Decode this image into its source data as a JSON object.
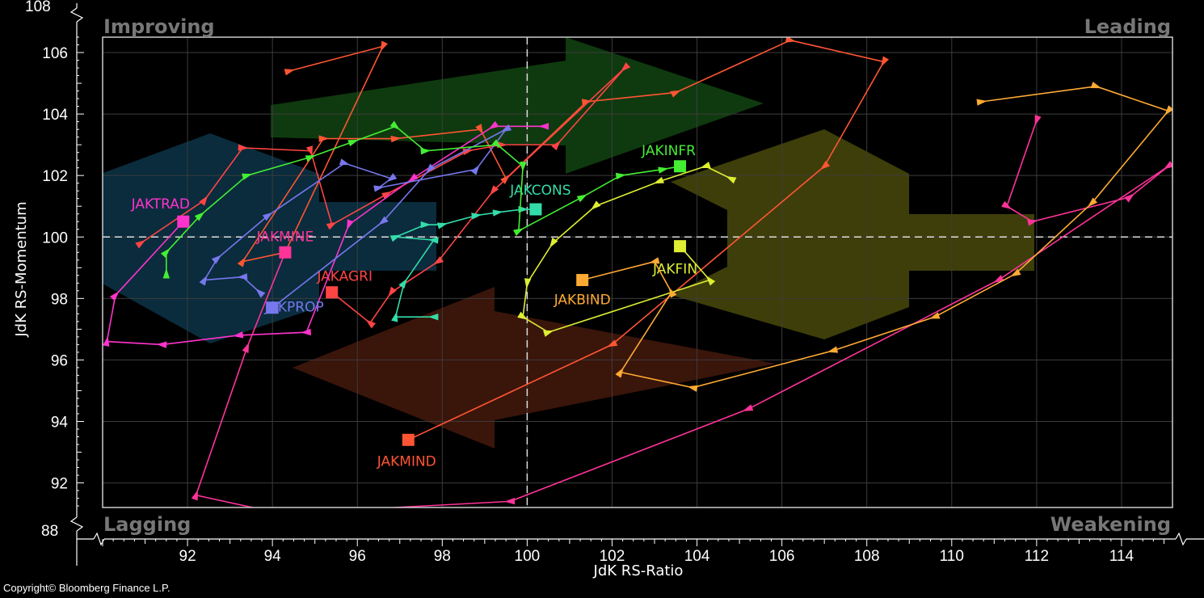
{
  "chart_data": {
    "type": "scatter",
    "subtype": "relative-rotation-graph",
    "xlabel": "JdK RS-Ratio",
    "ylabel": "JdK RS-Momentum",
    "xlim": [
      90,
      115.2
    ],
    "ylim": [
      91.2,
      106.5
    ],
    "x_ticks": [
      92,
      94,
      96,
      98,
      100,
      102,
      104,
      106,
      108,
      110,
      112,
      114
    ],
    "y_ticks": [
      92,
      94,
      96,
      98,
      100,
      102,
      104,
      106
    ],
    "y_break_labels": [
      "108",
      "88"
    ],
    "center": [
      100,
      100
    ],
    "grid": true,
    "quadrants": {
      "top_left": {
        "label": "Improving",
        "color": "#1a6b1a"
      },
      "top_right": {
        "label": "Leading",
        "color": "#5a5a00"
      },
      "bottom_left": {
        "label": "Lagging",
        "color": "#0d3d5a"
      },
      "bottom_right": {
        "label": "Weakening",
        "color": "#5a1e0a"
      }
    },
    "series": [
      {
        "name": "JAKMIND",
        "color": "#ff5533",
        "points": [
          [
            94.4,
            105.4
          ],
          [
            96.6,
            106.2
          ],
          [
            94.3,
            99.5
          ],
          [
            93.3,
            99.2
          ],
          [
            95.2,
            103.2
          ],
          [
            96.9,
            103.2
          ],
          [
            98.9,
            103.5
          ],
          [
            99.5,
            101.9
          ],
          [
            101.4,
            104.4
          ],
          [
            103.5,
            104.7
          ],
          [
            106.2,
            106.4
          ],
          [
            108.4,
            105.7
          ],
          [
            107.0,
            102.3
          ],
          [
            102.0,
            96.5
          ],
          [
            97.2,
            93.4
          ]
        ]
      },
      {
        "name": "JAKAGRI",
        "color": "#ff4444",
        "points": [
          [
            90.9,
            99.8
          ],
          [
            92.4,
            101.2
          ],
          [
            93.3,
            102.9
          ],
          [
            94.9,
            102.8
          ],
          [
            95.4,
            100.4
          ],
          [
            96.7,
            101.4
          ],
          [
            98.6,
            102.8
          ],
          [
            99.4,
            103.0
          ],
          [
            100.7,
            103.0
          ],
          [
            102.3,
            105.5
          ],
          [
            99.2,
            101.5
          ],
          [
            97.9,
            99.2
          ],
          [
            96.8,
            98.2
          ],
          [
            96.3,
            97.2
          ],
          [
            95.4,
            98.2
          ]
        ]
      },
      {
        "name": "JAKTRAD",
        "color": "#ff33cc",
        "points": [
          [
            100.4,
            103.6
          ],
          [
            99.2,
            103.6
          ],
          [
            97.3,
            101.9
          ],
          [
            95.8,
            100.4
          ],
          [
            94.8,
            96.9
          ],
          [
            93.2,
            96.8
          ],
          [
            91.4,
            96.5
          ],
          [
            90.1,
            96.6
          ],
          [
            90.3,
            98.1
          ],
          [
            91.9,
            100.5
          ]
        ]
      },
      {
        "name": "JAKMINE",
        "color": "#ff3399",
        "points": [
          [
            112.0,
            103.8
          ],
          [
            111.3,
            101.0
          ],
          [
            111.9,
            100.5
          ],
          [
            114.2,
            101.3
          ],
          [
            115.1,
            102.3
          ],
          [
            111.1,
            98.6
          ],
          [
            105.2,
            94.4
          ],
          [
            99.6,
            91.4
          ],
          [
            94.2,
            91.0
          ],
          [
            92.2,
            91.6
          ],
          [
            93.4,
            96.4
          ],
          [
            94.3,
            99.5
          ]
        ]
      },
      {
        "name": "JAKPROP",
        "color": "#7777ee",
        "points": [
          [
            93.7,
            98.2
          ],
          [
            93.3,
            98.7
          ],
          [
            92.4,
            98.6
          ],
          [
            92.7,
            99.3
          ],
          [
            93.9,
            100.7
          ],
          [
            95.7,
            102.4
          ],
          [
            96.8,
            101.9
          ],
          [
            96.5,
            101.6
          ],
          [
            98.8,
            102.2
          ],
          [
            99.5,
            103.5
          ],
          [
            97.7,
            102.2
          ],
          [
            96.6,
            100.5
          ],
          [
            94.0,
            97.7
          ]
        ]
      },
      {
        "name": "JAKCONS",
        "color": "#33ddaa",
        "points": [
          [
            97.8,
            97.4
          ],
          [
            96.9,
            97.4
          ],
          [
            97.1,
            98.5
          ],
          [
            97.8,
            99.9
          ],
          [
            96.9,
            100.0
          ],
          [
            97.6,
            100.4
          ],
          [
            98.0,
            100.4
          ],
          [
            98.8,
            100.7
          ],
          [
            99.3,
            100.8
          ],
          [
            99.9,
            100.9
          ],
          [
            100.2,
            100.9
          ]
        ]
      },
      {
        "name": "JAKINFR",
        "color": "#44ee33",
        "points": [
          [
            91.5,
            98.8
          ],
          [
            91.5,
            99.5
          ],
          [
            92.3,
            100.7
          ],
          [
            93.4,
            102.0
          ],
          [
            94.9,
            102.6
          ],
          [
            95.9,
            103.1
          ],
          [
            96.9,
            103.6
          ],
          [
            97.6,
            102.8
          ],
          [
            99.3,
            103.0
          ],
          [
            99.9,
            102.3
          ],
          [
            99.8,
            100.2
          ],
          [
            101.3,
            101.3
          ],
          [
            102.2,
            102.0
          ],
          [
            103.2,
            102.2
          ],
          [
            103.6,
            102.3
          ]
        ]
      },
      {
        "name": "JAKFIN",
        "color": "#ddee33",
        "points": [
          [
            104.8,
            101.9
          ],
          [
            104.2,
            102.3
          ],
          [
            103.1,
            101.8
          ],
          [
            101.6,
            101.0
          ],
          [
            100.6,
            99.8
          ],
          [
            100.0,
            98.5
          ],
          [
            99.9,
            97.4
          ],
          [
            100.5,
            96.9
          ],
          [
            104.3,
            98.6
          ],
          [
            103.6,
            99.7
          ]
        ]
      },
      {
        "name": "JAKBIND",
        "color": "#ffaa33",
        "points": [
          [
            110.7,
            104.4
          ],
          [
            113.4,
            104.9
          ],
          [
            115.1,
            104.1
          ],
          [
            113.3,
            101.1
          ],
          [
            111.5,
            98.8
          ],
          [
            109.6,
            97.4
          ],
          [
            107.2,
            96.3
          ],
          [
            103.9,
            95.1
          ],
          [
            102.2,
            95.6
          ],
          [
            103.4,
            98.2
          ],
          [
            103.0,
            99.2
          ],
          [
            101.3,
            98.6
          ]
        ]
      }
    ]
  },
  "copyright": "Copyright© Bloomberg Finance L.P."
}
